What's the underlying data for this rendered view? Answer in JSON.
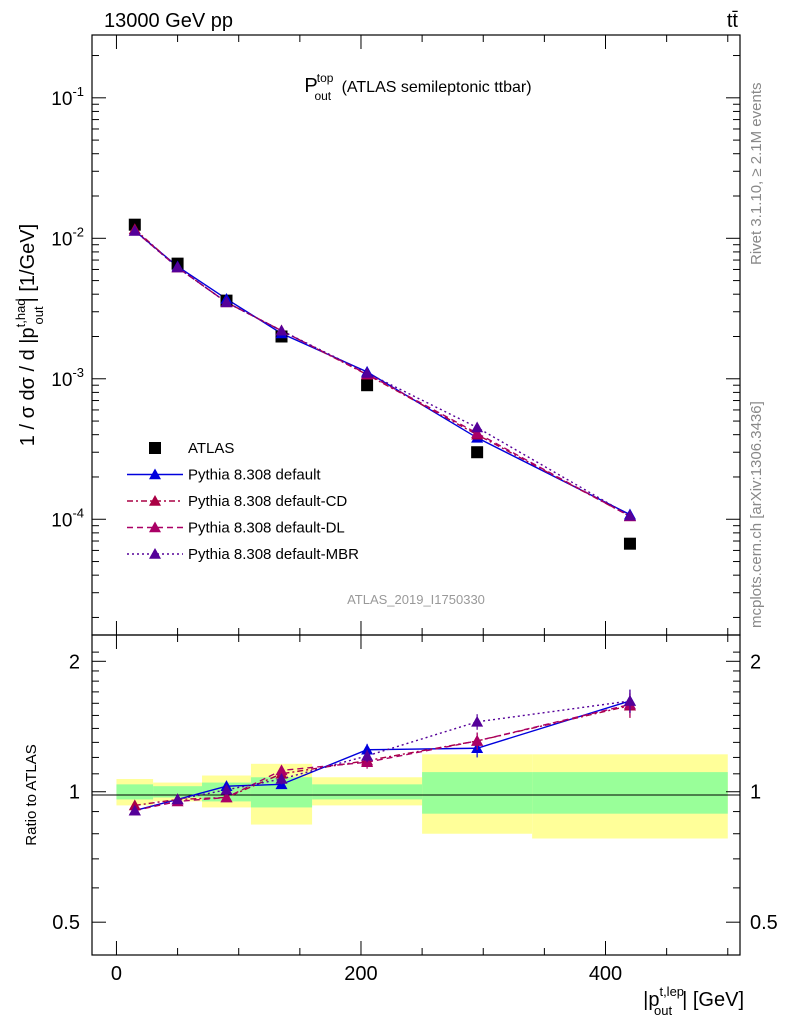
{
  "header": {
    "energy_label": "13000 GeV pp",
    "process_label": "tt̄"
  },
  "side_labels": {
    "rivet": "Rivet 3.1.10, ≥ 2.1M events",
    "mcplots": "mcplots.cern.ch [arXiv:1306.3436]"
  },
  "analysis_id": "ATLAS_2019_I1750330",
  "chart_data": [
    {
      "type": "scatter",
      "panel": "main",
      "title": "P_out^top (ATLAS semileptonic ttbar)",
      "ylabel": "1 / σ dσ / d |p_out^t,had| [1/GeV]",
      "log_y": true,
      "ylim": [
        1.5e-05,
        0.28
      ],
      "xlim": [
        -20,
        510
      ],
      "y_tick_labels": [
        "10^-4",
        "10^-3",
        "10^-2",
        "10^-1"
      ],
      "legend_position": "bottom-left",
      "x": [
        15,
        50,
        90,
        135,
        205,
        295,
        420
      ],
      "series": [
        {
          "name": "ATLAS",
          "color": "#000000",
          "marker": "square",
          "line": "none",
          "values": [
            0.0125,
            0.0066,
            0.0036,
            0.002,
            0.0009,
            0.0003,
            6.7e-05
          ]
        },
        {
          "name": "Pythia 8.308 default",
          "color": "#0000dd",
          "marker": "triangle",
          "line": "solid",
          "values": [
            0.0113,
            0.0063,
            0.0037,
            0.0021,
            0.00112,
            0.00038,
            0.000108
          ]
        },
        {
          "name": "Pythia 8.308 default-CD",
          "color": "#aa0044",
          "marker": "triangle",
          "line": "dashdot",
          "values": [
            0.0116,
            0.0062,
            0.0035,
            0.0022,
            0.00107,
            0.0004,
            0.000105
          ]
        },
        {
          "name": "Pythia 8.308 default-DL",
          "color": "#aa0066",
          "marker": "triangle",
          "line": "dashed",
          "values": [
            0.0113,
            0.0062,
            0.0035,
            0.0022,
            0.00108,
            0.00041,
            0.000105
          ]
        },
        {
          "name": "Pythia 8.308 default-MBR",
          "color": "#550099",
          "marker": "triangle",
          "line": "dotted",
          "values": [
            0.0113,
            0.0062,
            0.0035,
            0.0022,
            0.0011,
            0.00045,
            0.000106
          ]
        }
      ]
    },
    {
      "type": "line",
      "panel": "ratio",
      "ylabel": "Ratio to ATLAS",
      "xlabel": "|p_out^t,lep| [GeV]",
      "ylim": [
        0.42,
        2.3
      ],
      "xlim": [
        -20,
        510
      ],
      "x_ticks": [
        0,
        200,
        400
      ],
      "y_ticks": [
        0.5,
        1,
        2
      ],
      "bands": [
        {
          "x0": 0,
          "x1": 30,
          "inner": [
            0.96,
            1.04
          ],
          "outer": [
            0.93,
            1.07
          ]
        },
        {
          "x0": 30,
          "x1": 70,
          "inner": [
            0.97,
            1.03
          ],
          "outer": [
            0.95,
            1.05
          ]
        },
        {
          "x0": 70,
          "x1": 110,
          "inner": [
            0.95,
            1.05
          ],
          "outer": [
            0.92,
            1.09
          ]
        },
        {
          "x0": 110,
          "x1": 160,
          "inner": [
            0.92,
            1.08
          ],
          "outer": [
            0.84,
            1.16
          ]
        },
        {
          "x0": 160,
          "x1": 250,
          "inner": [
            0.96,
            1.04
          ],
          "outer": [
            0.93,
            1.08
          ]
        },
        {
          "x0": 250,
          "x1": 340,
          "inner": [
            0.89,
            1.11
          ],
          "outer": [
            0.8,
            1.22
          ]
        },
        {
          "x0": 340,
          "x1": 500,
          "inner": [
            0.89,
            1.11
          ],
          "outer": [
            0.78,
            1.22
          ]
        }
      ],
      "x": [
        15,
        50,
        90,
        135,
        205,
        295,
        420
      ],
      "series": [
        {
          "name": "Pythia 8.308 default",
          "color": "#0000dd",
          "line": "solid",
          "values": [
            0.905,
            0.96,
            1.03,
            1.04,
            1.25,
            1.26,
            1.62
          ],
          "errors": [
            0.015,
            0.02,
            0.02,
            0.02,
            0.04,
            0.06,
            0.1
          ]
        },
        {
          "name": "Pythia 8.308 default-CD",
          "color": "#aa0044",
          "line": "dashdot",
          "values": [
            0.93,
            0.96,
            0.97,
            1.1,
            1.18,
            1.31,
            1.58
          ],
          "errors": [
            0.015,
            0.02,
            0.02,
            0.03,
            0.04,
            0.06,
            0.1
          ]
        },
        {
          "name": "Pythia 8.308 default-DL",
          "color": "#aa0066",
          "line": "dashed",
          "values": [
            0.905,
            0.95,
            0.97,
            1.12,
            1.17,
            1.31,
            1.59
          ],
          "errors": [
            0.015,
            0.02,
            0.02,
            0.03,
            0.04,
            0.06,
            0.1
          ]
        },
        {
          "name": "Pythia 8.308 default-MBR",
          "color": "#550099",
          "line": "dotted",
          "values": [
            0.905,
            0.96,
            1.01,
            1.07,
            1.21,
            1.45,
            1.62
          ],
          "errors": [
            0.015,
            0.02,
            0.02,
            0.03,
            0.04,
            0.06,
            0.1
          ]
        }
      ]
    }
  ]
}
